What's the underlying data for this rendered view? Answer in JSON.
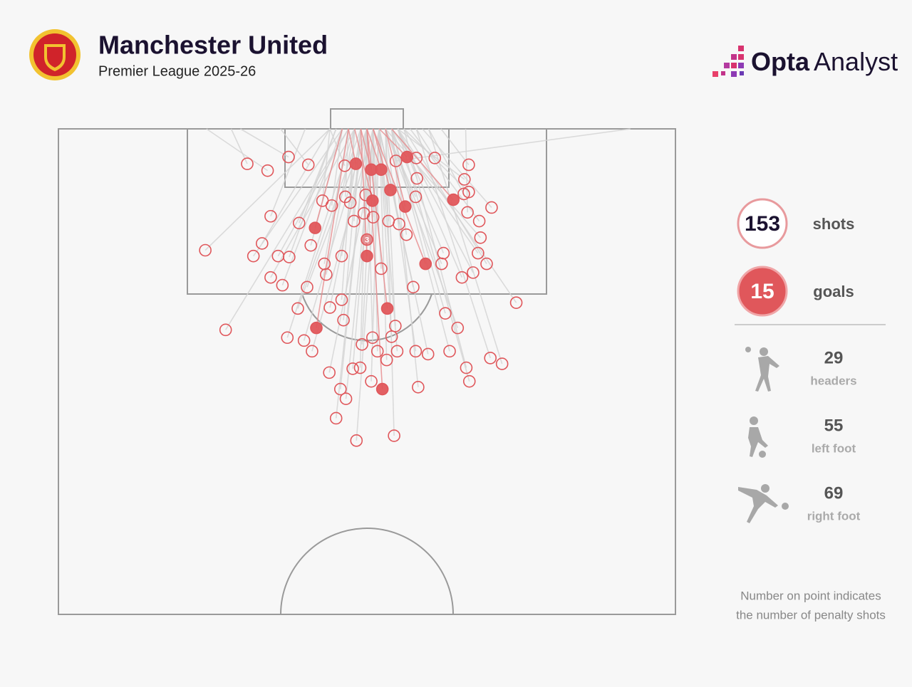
{
  "header": {
    "title": "Manchester United",
    "subtitle": "Premier League 2025-26"
  },
  "brand": {
    "bold": "Opta",
    "light": "Analyst"
  },
  "chart_data": {
    "type": "shotmap",
    "xlim": [
      0,
      100
    ],
    "ylim": [
      0,
      50
    ],
    "series": [
      {
        "color": "#e0575b",
        "line_color": "#d4d4d4",
        "filled": false,
        "x": [
          30.6,
          33.9,
          37.3,
          40.5,
          23.8,
          34.4,
          33.0,
          31.6,
          35.6,
          37.4,
          34.4,
          36.3,
          40.3,
          38.8,
          27.1,
          37.1,
          39.8,
          41.1,
          43.9,
          45.7,
          46.6,
          45.0,
          48.3,
          54.4,
          58.3,
          66.6,
          66.1,
          70.0,
          71.9,
          74.2,
          69.4,
          68.0,
          68.4,
          68.2,
          70.2,
          66.3,
          66.5,
          65.8,
          66.5,
          61.0,
          58.0,
          58.1,
          57.9,
          55.2,
          56.4,
          52.3,
          57.5,
          62.1,
          65.4,
          62.7,
          64.7,
          63.4,
          59.9,
          57.9,
          54.9,
          51.7,
          53.2,
          48.9,
          47.7,
          50.7,
          43.1,
          43.4,
          45.9,
          44.0,
          45.9,
          46.2,
          49.2,
          50.9,
          54.0,
          54.6,
          47.9,
          49.5,
          51.0,
          53.5,
          47.3,
          44.3,
          42.8,
          46.5,
          49.8,
          39.0,
          40.9,
          54.7,
          46.4,
          65.7,
          62.4,
          67.2
        ],
        "values": [
          3.6,
          4.3,
          2.9,
          3.7,
          12.5,
          9.0,
          11.8,
          13.1,
          13.1,
          13.2,
          15.3,
          16.1,
          16.3,
          18.5,
          20.7,
          21.5,
          21.8,
          22.9,
          25.1,
          26.8,
          27.8,
          29.8,
          32.1,
          31.6,
          26.6,
          26.0,
          24.6,
          23.6,
          24.2,
          17.9,
          13.9,
          12.8,
          11.2,
          9.5,
          8.1,
          8.6,
          6.5,
          5.2,
          3.7,
          3.0,
          3.0,
          5.1,
          7.0,
          9.8,
          10.9,
          14.4,
          16.3,
          13.9,
          15.3,
          19.0,
          20.5,
          22.9,
          23.2,
          22.9,
          22.9,
          22.9,
          23.8,
          24.6,
          24.7,
          26.0,
          13.9,
          15.0,
          13.1,
          18.4,
          17.6,
          19.7,
          22.2,
          21.5,
          21.4,
          20.3,
          9.5,
          8.7,
          9.1,
          9.5,
          7.6,
          7.9,
          7.4,
          7.0,
          6.8,
          9.7,
          12.0,
          3.3,
          3.8,
          6.7,
          12.8,
          14.8
        ],
        "end_x": [
          28,
          24,
          29.5,
          36,
          44,
          40,
          44,
          46,
          47,
          45,
          48,
          46,
          50,
          49,
          47,
          48,
          50,
          51,
          52,
          50,
          51,
          50,
          52,
          53,
          54,
          55,
          56,
          58,
          60,
          55,
          56,
          54,
          53,
          57,
          59,
          66,
          56,
          55,
          62,
          58,
          54,
          55,
          53,
          52,
          54,
          51,
          52,
          53,
          55,
          54,
          53,
          54,
          52,
          53,
          52,
          51,
          52,
          50,
          51,
          52,
          47,
          48,
          49,
          50,
          48,
          49,
          51,
          50,
          52,
          53,
          49,
          50,
          51,
          52,
          48,
          46,
          44,
          47,
          50,
          45,
          46,
          92.7,
          44,
          60,
          54,
          55
        ]
      },
      {
        "color": "#e0575b",
        "line_color": "#e88a8c",
        "filled": true,
        "x": [
          48.2,
          50.7,
          52.3,
          56.5,
          53.8,
          50.9,
          56.2,
          64.0,
          41.6,
          50.0,
          59.5,
          53.3,
          41.8,
          52.5
        ],
        "values": [
          3.6,
          4.2,
          4.2,
          2.9,
          6.3,
          7.4,
          8.0,
          7.3,
          10.2,
          13.1,
          13.9,
          18.5,
          20.5,
          26.8
        ],
        "end_x": [
          47,
          49,
          50,
          52,
          51,
          48,
          53,
          54,
          46,
          49,
          51,
          50,
          47,
          50
        ]
      }
    ],
    "penalty": {
      "x": 50.0,
      "y": 11.4,
      "count": 3
    }
  },
  "summary": [
    {
      "value": 153,
      "label": "shots"
    },
    {
      "value": 15,
      "label": "goals"
    }
  ],
  "breakdown": [
    {
      "value": 29,
      "label": "headers"
    },
    {
      "value": 55,
      "label": "left foot"
    },
    {
      "value": 69,
      "label": "right foot"
    }
  ],
  "note_lines": [
    "Number on point indicates",
    "the number of penalty shots"
  ]
}
